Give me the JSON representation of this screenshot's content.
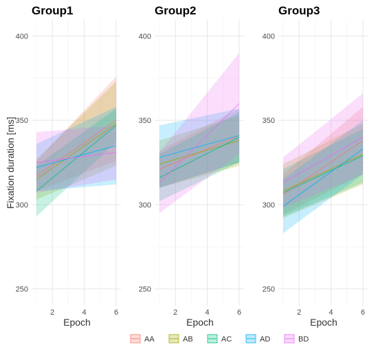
{
  "chart_data": {
    "type": "line",
    "ylabel": "Fixation duration [ms]",
    "xlabel": "Epoch",
    "ylim": [
      240,
      410
    ],
    "xlim": [
      0.7,
      6.3
    ],
    "x_ticks": [
      2,
      4,
      6
    ],
    "y_ticks": [
      250,
      300,
      350,
      400
    ],
    "grid": true,
    "legend_position": "bottom",
    "legend": [
      "AA",
      "AB",
      "AC",
      "AD",
      "BD"
    ],
    "colors": {
      "AA": "#F8766D",
      "AB": "#A3A500",
      "AC": "#00BF7D",
      "AD": "#00B0F6",
      "BD": "#E76BF3"
    },
    "panels": [
      {
        "title": "Group1",
        "series": [
          {
            "name": "AA",
            "x": [
              1,
              6
            ],
            "y": [
              317,
              350
            ],
            "lower": [
              308,
              326
            ],
            "upper": [
              326,
              376
            ]
          },
          {
            "name": "AB",
            "x": [
              1,
              6
            ],
            "y": [
              315,
              348
            ],
            "lower": [
              303,
              323
            ],
            "upper": [
              327,
              373
            ]
          },
          {
            "name": "AC",
            "x": [
              1,
              6
            ],
            "y": [
              308,
              347
            ],
            "lower": [
              293,
              337
            ],
            "upper": [
              323,
              357
            ]
          },
          {
            "name": "AD",
            "x": [
              1,
              6
            ],
            "y": [
              322,
              335
            ],
            "lower": [
              308,
              312
            ],
            "upper": [
              336,
              358
            ]
          },
          {
            "name": "BD",
            "x": [
              1,
              6
            ],
            "y": [
              325,
              331
            ],
            "lower": [
              307,
              315
            ],
            "upper": [
              343,
              347
            ]
          }
        ]
      },
      {
        "title": "Group2",
        "series": [
          {
            "name": "AA",
            "x": [
              1,
              6
            ],
            "y": [
              321,
              341
            ],
            "lower": [
              310,
              325
            ],
            "upper": [
              332,
              357
            ]
          },
          {
            "name": "AB",
            "x": [
              1,
              6
            ],
            "y": [
              324,
              338
            ],
            "lower": [
              310,
              323
            ],
            "upper": [
              338,
              353
            ]
          },
          {
            "name": "AC",
            "x": [
              1,
              6
            ],
            "y": [
              316,
              340
            ],
            "lower": [
              302,
              325
            ],
            "upper": [
              330,
              355
            ]
          },
          {
            "name": "AD",
            "x": [
              1,
              6
            ],
            "y": [
              328,
              341
            ],
            "lower": [
              310,
              325
            ],
            "upper": [
              347,
              357
            ]
          },
          {
            "name": "BD",
            "x": [
              1,
              6
            ],
            "y": [
              313,
              360
            ],
            "lower": [
              295,
              330
            ],
            "upper": [
              331,
              390
            ]
          }
        ]
      },
      {
        "title": "Group3",
        "series": [
          {
            "name": "AA",
            "x": [
              1,
              6
            ],
            "y": [
              306,
              338
            ],
            "lower": [
              294,
              318
            ],
            "upper": [
              318,
              358
            ]
          },
          {
            "name": "AB",
            "x": [
              1,
              6
            ],
            "y": [
              308,
              330
            ],
            "lower": [
              292,
              312
            ],
            "upper": [
              324,
              348
            ]
          },
          {
            "name": "AC",
            "x": [
              1,
              6
            ],
            "y": [
              307,
              329
            ],
            "lower": [
              293,
              313
            ],
            "upper": [
              321,
              345
            ]
          },
          {
            "name": "AD",
            "x": [
              1,
              6
            ],
            "y": [
              299,
              333
            ],
            "lower": [
              283,
              318
            ],
            "upper": [
              315,
              350
            ]
          },
          {
            "name": "BD",
            "x": [
              1,
              6
            ],
            "y": [
              313,
              340
            ],
            "lower": [
              298,
              318
            ],
            "upper": [
              328,
              366
            ]
          }
        ]
      }
    ]
  }
}
